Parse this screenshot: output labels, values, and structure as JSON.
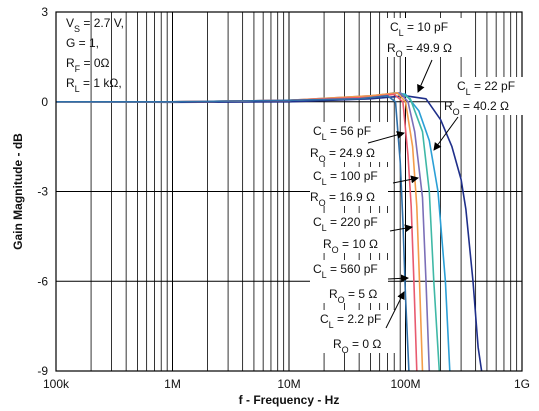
{
  "chart_data": {
    "type": "line",
    "title": "",
    "xlabel": "f - Frequency - Hz",
    "ylabel": "Gain Magnitude - dB",
    "xscale": "log",
    "xlim": [
      100000,
      1000000000
    ],
    "ylim": [
      -9,
      3
    ],
    "grid": true,
    "x_ticks": [
      {
        "value": 100000,
        "label": "100k"
      },
      {
        "value": 1000000,
        "label": "1M"
      },
      {
        "value": 10000000,
        "label": "10M"
      },
      {
        "value": 100000000,
        "label": "100M"
      },
      {
        "value": 1000000000,
        "label": "1G"
      }
    ],
    "y_ticks": [
      {
        "value": 3,
        "label": "3"
      },
      {
        "value": 0,
        "label": "0"
      },
      {
        "value": -3,
        "label": "-3"
      },
      {
        "value": -6,
        "label": "-6"
      },
      {
        "value": -9,
        "label": "-9"
      }
    ],
    "conditions": [
      {
        "pre": "V",
        "sub": "S",
        "post": " = 2.7 V,"
      },
      {
        "pre": "G = 1,",
        "sub": "",
        "post": ""
      },
      {
        "pre": "R",
        "sub": "F",
        "post": " = 0Ω"
      },
      {
        "pre": "R",
        "sub": "L",
        "post": " = 1 kΩ,"
      }
    ],
    "annotations": [
      {
        "cl": "10 pF",
        "ro": "49.9 Ω"
      },
      {
        "cl": "22 pF",
        "ro": "40.2 Ω"
      },
      {
        "cl": "56 pF",
        "ro": "24.9 Ω"
      },
      {
        "cl": "100 pF",
        "ro": "16.9 Ω"
      },
      {
        "cl": "220 pF",
        "ro": "10 Ω"
      },
      {
        "cl": "560 pF",
        "ro": "5 Ω"
      },
      {
        "cl": "2.2 pF",
        "ro": "0 Ω"
      }
    ],
    "series": [
      {
        "color": "#1f2f8a",
        "x": [
          100000,
          1000000,
          10000000,
          50000000,
          100000000,
          150000000,
          200000000,
          250000000,
          300000000,
          330000000,
          380000000,
          420000000,
          450000000
        ],
        "y": [
          0,
          -0.02,
          0,
          0.1,
          0.2,
          0.1,
          -0.6,
          -1.5,
          -2.6,
          -3.6,
          -6.0,
          -8.2,
          -9
        ]
      },
      {
        "color": "#2b9fd6",
        "x": [
          100000,
          1000000,
          10000000,
          50000000,
          80000000,
          100000000,
          130000000,
          160000000,
          190000000,
          220000000,
          240000000
        ],
        "y": [
          0,
          0,
          0.05,
          0.15,
          0.3,
          0.25,
          -0.3,
          -1.3,
          -3.0,
          -6.0,
          -9
        ]
      },
      {
        "color": "#3fb8a6",
        "x": [
          100000,
          1000000,
          10000000,
          50000000,
          90000000,
          110000000,
          140000000,
          160000000,
          175000000,
          195000000
        ],
        "y": [
          0,
          0,
          0.05,
          0.15,
          0.3,
          0.1,
          -1.0,
          -3.0,
          -6.0,
          -9
        ]
      },
      {
        "color": "#7b6fb8",
        "x": [
          100000,
          1000000,
          10000000,
          50000000,
          90000000,
          105000000,
          120000000,
          140000000,
          150000000,
          160000000
        ],
        "y": [
          0,
          0,
          0.05,
          0.2,
          0.3,
          0.0,
          -1.0,
          -3.2,
          -6.0,
          -9
        ]
      },
      {
        "color": "#f39c4a",
        "x": [
          100000,
          1000000,
          10000000,
          50000000,
          85000000,
          100000000,
          115000000,
          125000000,
          132000000,
          140000000
        ],
        "y": [
          0,
          0,
          0.05,
          0.2,
          0.3,
          0.0,
          -1.5,
          -3.5,
          -6.0,
          -9
        ]
      },
      {
        "color": "#e85a6f",
        "x": [
          100000,
          1000000,
          10000000,
          50000000,
          80000000,
          95000000,
          105000000,
          112000000,
          118000000,
          125000000
        ],
        "y": [
          0,
          0,
          0.05,
          0.15,
          0.25,
          0.0,
          -1.8,
          -3.5,
          -6.0,
          -9
        ]
      },
      {
        "color": "#2f6fa8",
        "x": [
          100000,
          1000000,
          10000000,
          40000000,
          70000000,
          82000000,
          90000000,
          95000000,
          100000000,
          107000000
        ],
        "y": [
          0,
          0,
          0.05,
          0.1,
          0.2,
          0.0,
          -2.0,
          -4.0,
          -6.5,
          -9
        ]
      }
    ]
  }
}
